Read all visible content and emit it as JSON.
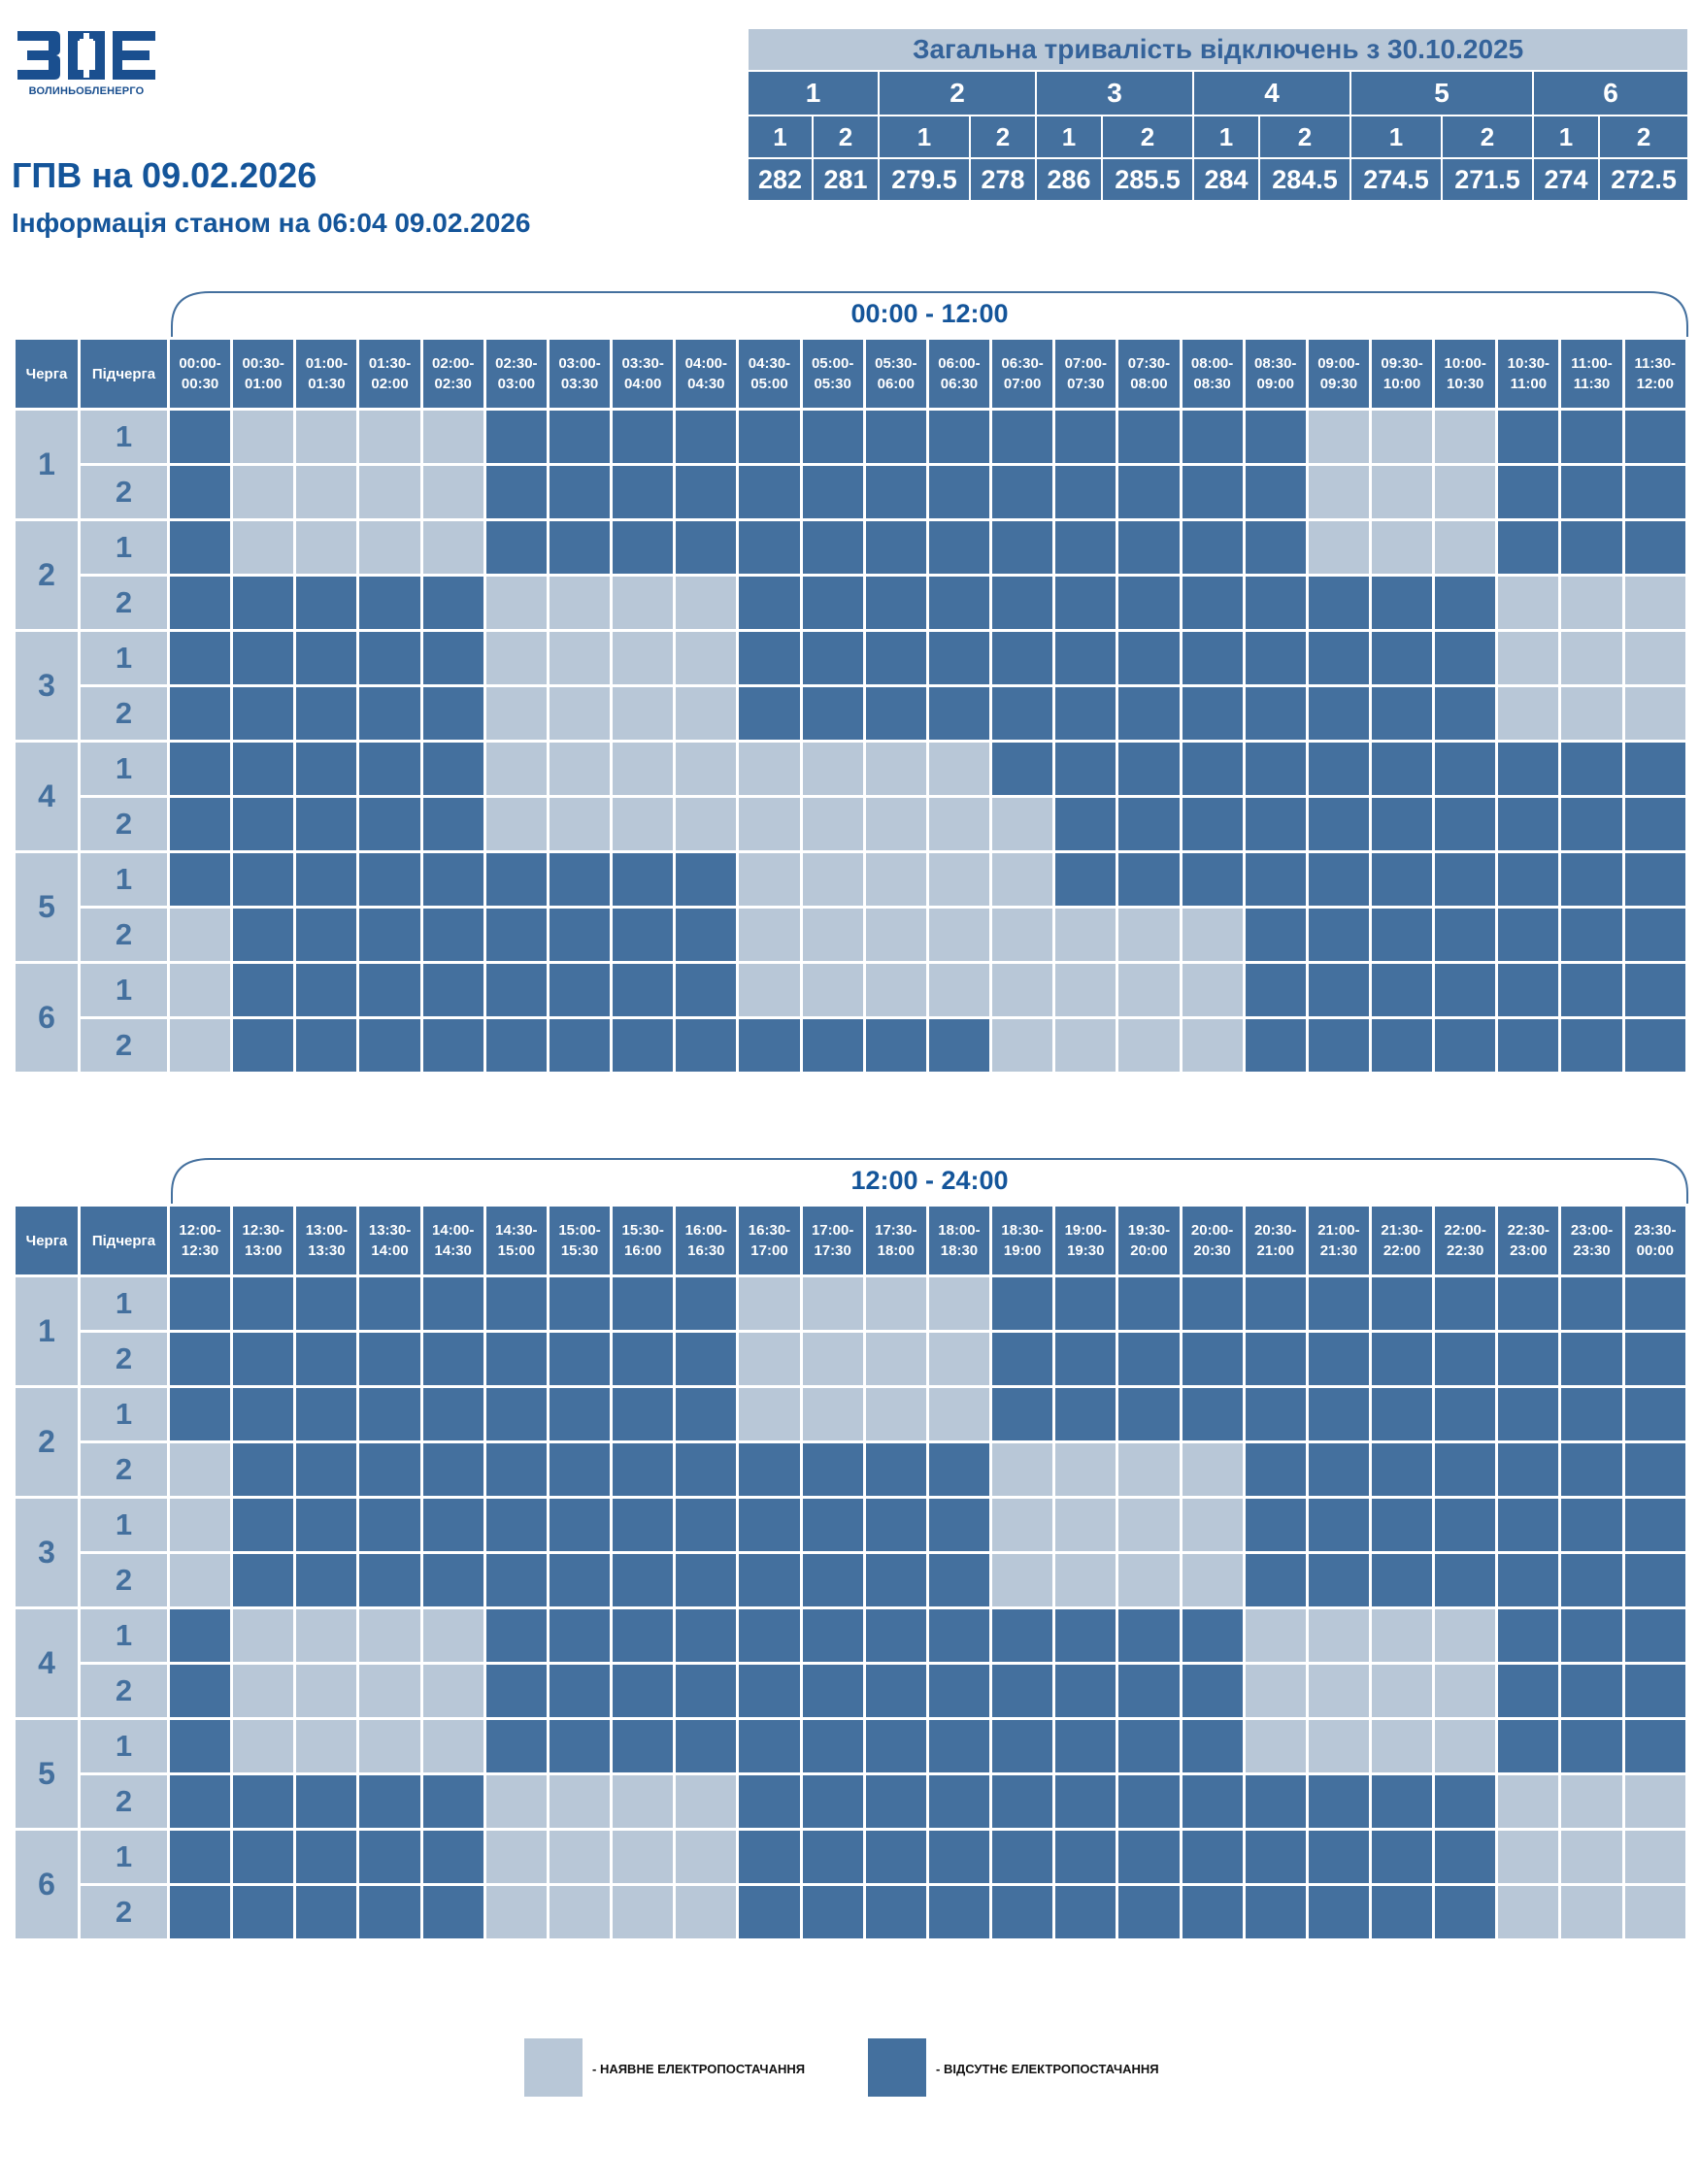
{
  "logo": {
    "text": "ВОЛИНЬОБЛЕНЕРГО"
  },
  "title": "ГПВ на 09.02.2026",
  "subtitle": "Інформація станом на 06:04 09.02.2026",
  "summary": {
    "title": "Загальна тривалість відключень з 30.10.2025",
    "queues": [
      "1",
      "2",
      "3",
      "4",
      "5",
      "6"
    ],
    "subqueues": [
      "1",
      "2",
      "1",
      "2",
      "1",
      "2",
      "1",
      "2",
      "1",
      "2",
      "1",
      "2"
    ],
    "values": [
      "282",
      "281",
      "279.5",
      "278",
      "286",
      "285.5",
      "284",
      "284.5",
      "274.5",
      "271.5",
      "274",
      "272.5"
    ]
  },
  "colors": {
    "on": "#b8c7d7",
    "off": "#44709e",
    "text": "#14559a"
  },
  "first_half": {
    "range_label": "00:00 - 12:00",
    "col_queue": "Черга",
    "col_subqueue": "Підчерга",
    "slots": [
      [
        "00:00-",
        "00:30"
      ],
      [
        "00:30-",
        "01:00"
      ],
      [
        "01:00-",
        "01:30"
      ],
      [
        "01:30-",
        "02:00"
      ],
      [
        "02:00-",
        "02:30"
      ],
      [
        "02:30-",
        "03:00"
      ],
      [
        "03:00-",
        "03:30"
      ],
      [
        "03:30-",
        "04:00"
      ],
      [
        "04:00-",
        "04:30"
      ],
      [
        "04:30-",
        "05:00"
      ],
      [
        "05:00-",
        "05:30"
      ],
      [
        "05:30-",
        "06:00"
      ],
      [
        "06:00-",
        "06:30"
      ],
      [
        "06:30-",
        "07:00"
      ],
      [
        "07:00-",
        "07:30"
      ],
      [
        "07:30-",
        "08:00"
      ],
      [
        "08:00-",
        "08:30"
      ],
      [
        "08:30-",
        "09:00"
      ],
      [
        "09:00-",
        "09:30"
      ],
      [
        "09:30-",
        "10:00"
      ],
      [
        "10:00-",
        "10:30"
      ],
      [
        "10:30-",
        "11:00"
      ],
      [
        "11:00-",
        "11:30"
      ],
      [
        "11:30-",
        "12:00"
      ]
    ],
    "rows": [
      {
        "queue": "1",
        "sub": "1",
        "cells": "011110000000000000111000"
      },
      {
        "queue": "1",
        "sub": "2",
        "cells": "011110000000000000111000"
      },
      {
        "queue": "2",
        "sub": "1",
        "cells": "011110000000000000111000"
      },
      {
        "queue": "2",
        "sub": "2",
        "cells": "000001111000000000000111"
      },
      {
        "queue": "3",
        "sub": "1",
        "cells": "000001111000000000000111"
      },
      {
        "queue": "3",
        "sub": "2",
        "cells": "000001111000000000000111"
      },
      {
        "queue": "4",
        "sub": "1",
        "cells": "000001111111100000000000"
      },
      {
        "queue": "4",
        "sub": "2",
        "cells": "000001111111110000000000"
      },
      {
        "queue": "5",
        "sub": "1",
        "cells": "000000000111110000000000"
      },
      {
        "queue": "5",
        "sub": "2",
        "cells": "100000000111111110000000"
      },
      {
        "queue": "6",
        "sub": "1",
        "cells": "100000000111111110000000"
      },
      {
        "queue": "6",
        "sub": "2",
        "cells": "100000000000011110000000"
      }
    ]
  },
  "second_half": {
    "range_label": "12:00 - 24:00",
    "col_queue": "Черга",
    "col_subqueue": "Підчерга",
    "slots": [
      [
        "12:00-",
        "12:30"
      ],
      [
        "12:30-",
        "13:00"
      ],
      [
        "13:00-",
        "13:30"
      ],
      [
        "13:30-",
        "14:00"
      ],
      [
        "14:00-",
        "14:30"
      ],
      [
        "14:30-",
        "15:00"
      ],
      [
        "15:00-",
        "15:30"
      ],
      [
        "15:30-",
        "16:00"
      ],
      [
        "16:00-",
        "16:30"
      ],
      [
        "16:30-",
        "17:00"
      ],
      [
        "17:00-",
        "17:30"
      ],
      [
        "17:30-",
        "18:00"
      ],
      [
        "18:00-",
        "18:30"
      ],
      [
        "18:30-",
        "19:00"
      ],
      [
        "19:00-",
        "19:30"
      ],
      [
        "19:30-",
        "20:00"
      ],
      [
        "20:00-",
        "20:30"
      ],
      [
        "20:30-",
        "21:00"
      ],
      [
        "21:00-",
        "21:30"
      ],
      [
        "21:30-",
        "22:00"
      ],
      [
        "22:00-",
        "22:30"
      ],
      [
        "22:30-",
        "23:00"
      ],
      [
        "23:00-",
        "23:30"
      ],
      [
        "23:30-",
        "00:00"
      ]
    ],
    "rows": [
      {
        "queue": "1",
        "sub": "1",
        "cells": "000000000111100000000000"
      },
      {
        "queue": "1",
        "sub": "2",
        "cells": "000000000111100000000000"
      },
      {
        "queue": "2",
        "sub": "1",
        "cells": "000000000111100000000000"
      },
      {
        "queue": "2",
        "sub": "2",
        "cells": "100000000000011110000000"
      },
      {
        "queue": "3",
        "sub": "1",
        "cells": "100000000000011110000000"
      },
      {
        "queue": "3",
        "sub": "2",
        "cells": "100000000000011110000000"
      },
      {
        "queue": "4",
        "sub": "1",
        "cells": "011110000000000001111000"
      },
      {
        "queue": "4",
        "sub": "2",
        "cells": "011110000000000001111000"
      },
      {
        "queue": "5",
        "sub": "1",
        "cells": "011110000000000001111000"
      },
      {
        "queue": "5",
        "sub": "2",
        "cells": "000001111000000000000111"
      },
      {
        "queue": "6",
        "sub": "1",
        "cells": "000001111000000000000111"
      },
      {
        "queue": "6",
        "sub": "2",
        "cells": "000001111000000000000111"
      }
    ]
  },
  "legend": {
    "on_label": "- НАЯВНЕ ЕЛЕКТРОПОСТАЧАННЯ",
    "off_label": "- ВІДСУТНЄ ЕЛЕКТРОПОСТАЧАННЯ"
  }
}
